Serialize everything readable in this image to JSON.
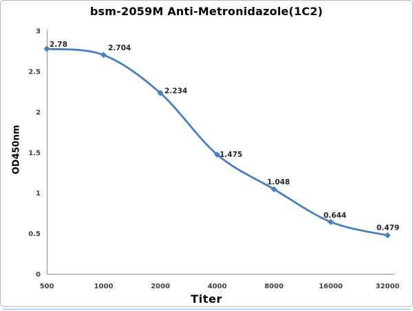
{
  "chart_data": {
    "type": "line",
    "title": "bsm-2059M Anti-Metronidazole(1C2)",
    "xlabel": "Titer",
    "ylabel": "OD450nm",
    "categories": [
      "500",
      "1000",
      "2000",
      "4000",
      "8000",
      "16000",
      "32000"
    ],
    "series": [
      {
        "name": "OD450nm",
        "values": [
          2.78,
          2.704,
          2.234,
          1.475,
          1.048,
          0.644,
          0.479
        ]
      }
    ],
    "data_labels": [
      "2.78",
      "2.704",
      "2.234",
      "1.475",
      "1.048",
      "0.644",
      "0.479"
    ],
    "y_ticks": [
      "0",
      "0.5",
      "1",
      "1.5",
      "2",
      "2.5",
      "3"
    ],
    "ylim": [
      0,
      3
    ],
    "grid": false,
    "legend": "none",
    "line_color": "#4a7ebb",
    "axis_color": "#8e8e8e",
    "tick_color": "#3f3f3f",
    "marker": "diamond",
    "line_smooth": true
  }
}
